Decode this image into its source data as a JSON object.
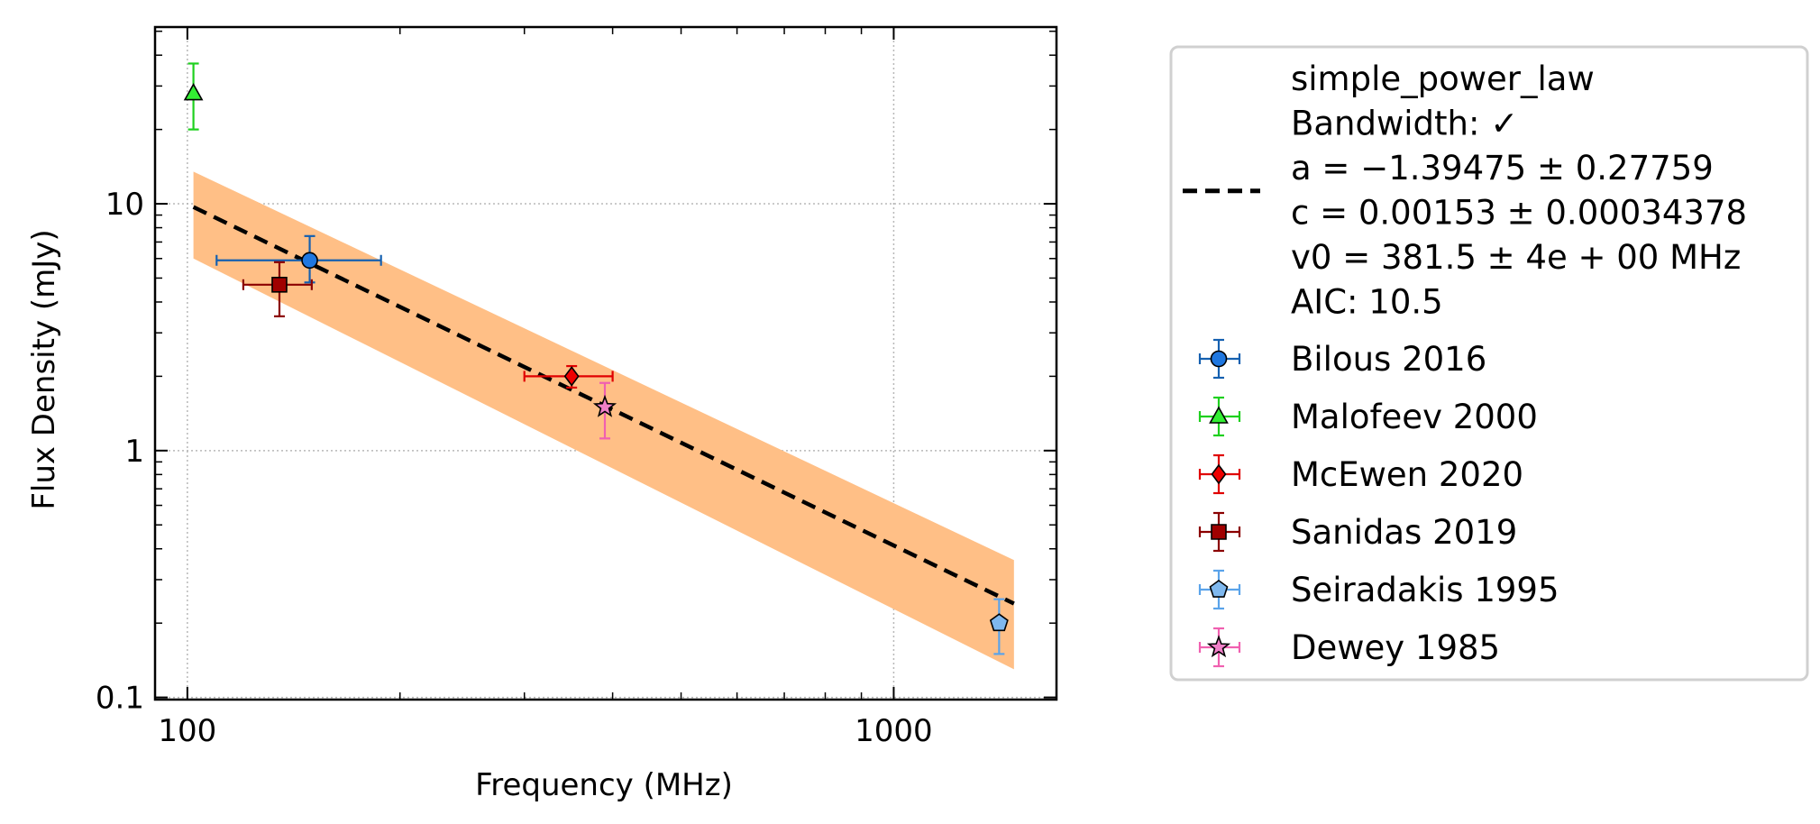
{
  "chart_data": {
    "type": "scatter",
    "xlabel": "Frequency (MHz)",
    "ylabel": "Flux Density (mJy)",
    "xscale": "log",
    "yscale": "log",
    "xlim": [
      90,
      1700
    ],
    "ylim": [
      0.098,
      52
    ],
    "grid": true,
    "legend_position": "outside-right",
    "x_ticks": [
      {
        "value": 100,
        "label": "100"
      },
      {
        "value": 1000,
        "label": "1000"
      }
    ],
    "y_ticks": [
      {
        "value": 0.1,
        "label": "0.1"
      },
      {
        "value": 1,
        "label": "1"
      },
      {
        "value": 10,
        "label": "10"
      }
    ],
    "fit": {
      "label_lines": [
        "simple_power_law",
        "Bandwidth: ✓",
        "a = −1.39475 ± 0.27759",
        "c = 0.00153 ± 0.00034378",
        "v0 = 381.5 ± 4e + 00 MHz",
        "AIC: 10.5"
      ],
      "line_color": "#000000",
      "band_color": "#ffbf86",
      "x_range": [
        102,
        1480
      ],
      "line": [
        [
          102,
          9.7
        ],
        [
          1480,
          0.24
        ]
      ],
      "band_upper": [
        [
          102,
          13.5
        ],
        [
          1480,
          0.36
        ]
      ],
      "band_lower": [
        [
          102,
          6.0
        ],
        [
          1480,
          0.13
        ]
      ]
    },
    "series": [
      {
        "name": "Bilous 2016",
        "marker": "circle",
        "color": "#1f77e0",
        "edge": "#1560b0",
        "points": [
          {
            "x": 149,
            "xerr": [
              110,
              188
            ],
            "y": 5.9,
            "yerr": [
              4.8,
              7.4
            ]
          }
        ]
      },
      {
        "name": "Malofeev 2000",
        "marker": "triangle",
        "color": "#33ee33",
        "edge": "#1fd01f",
        "points": [
          {
            "x": 102,
            "xerr": [
              102,
              102
            ],
            "y": 28,
            "yerr": [
              20,
              37
            ]
          }
        ]
      },
      {
        "name": "McEwen 2020",
        "marker": "diamond",
        "color": "#ee0000",
        "edge": "#e00000",
        "points": [
          {
            "x": 350,
            "xerr": [
              300,
              400
            ],
            "y": 2.0,
            "yerr": [
              1.8,
              2.2
            ]
          }
        ]
      },
      {
        "name": "Sanidas 2019",
        "marker": "square",
        "color": "#a00000",
        "edge": "#8b0000",
        "points": [
          {
            "x": 135,
            "xerr": [
              120,
              150
            ],
            "y": 4.7,
            "yerr": [
              3.5,
              5.8
            ]
          }
        ]
      },
      {
        "name": "Seiradakis 1995",
        "marker": "pentagon",
        "color": "#7fb8ee",
        "edge": "#5aa3ea",
        "points": [
          {
            "x": 1410,
            "xerr": [
              1410,
              1410
            ],
            "y": 0.2,
            "yerr": [
              0.15,
              0.25
            ]
          }
        ]
      },
      {
        "name": "Dewey 1985",
        "marker": "star",
        "color": "#f080c8",
        "edge": "#f060b0",
        "points": [
          {
            "x": 390,
            "xerr": [
              390,
              390
            ],
            "y": 1.5,
            "yerr": [
              1.12,
              1.88
            ]
          }
        ]
      }
    ]
  }
}
